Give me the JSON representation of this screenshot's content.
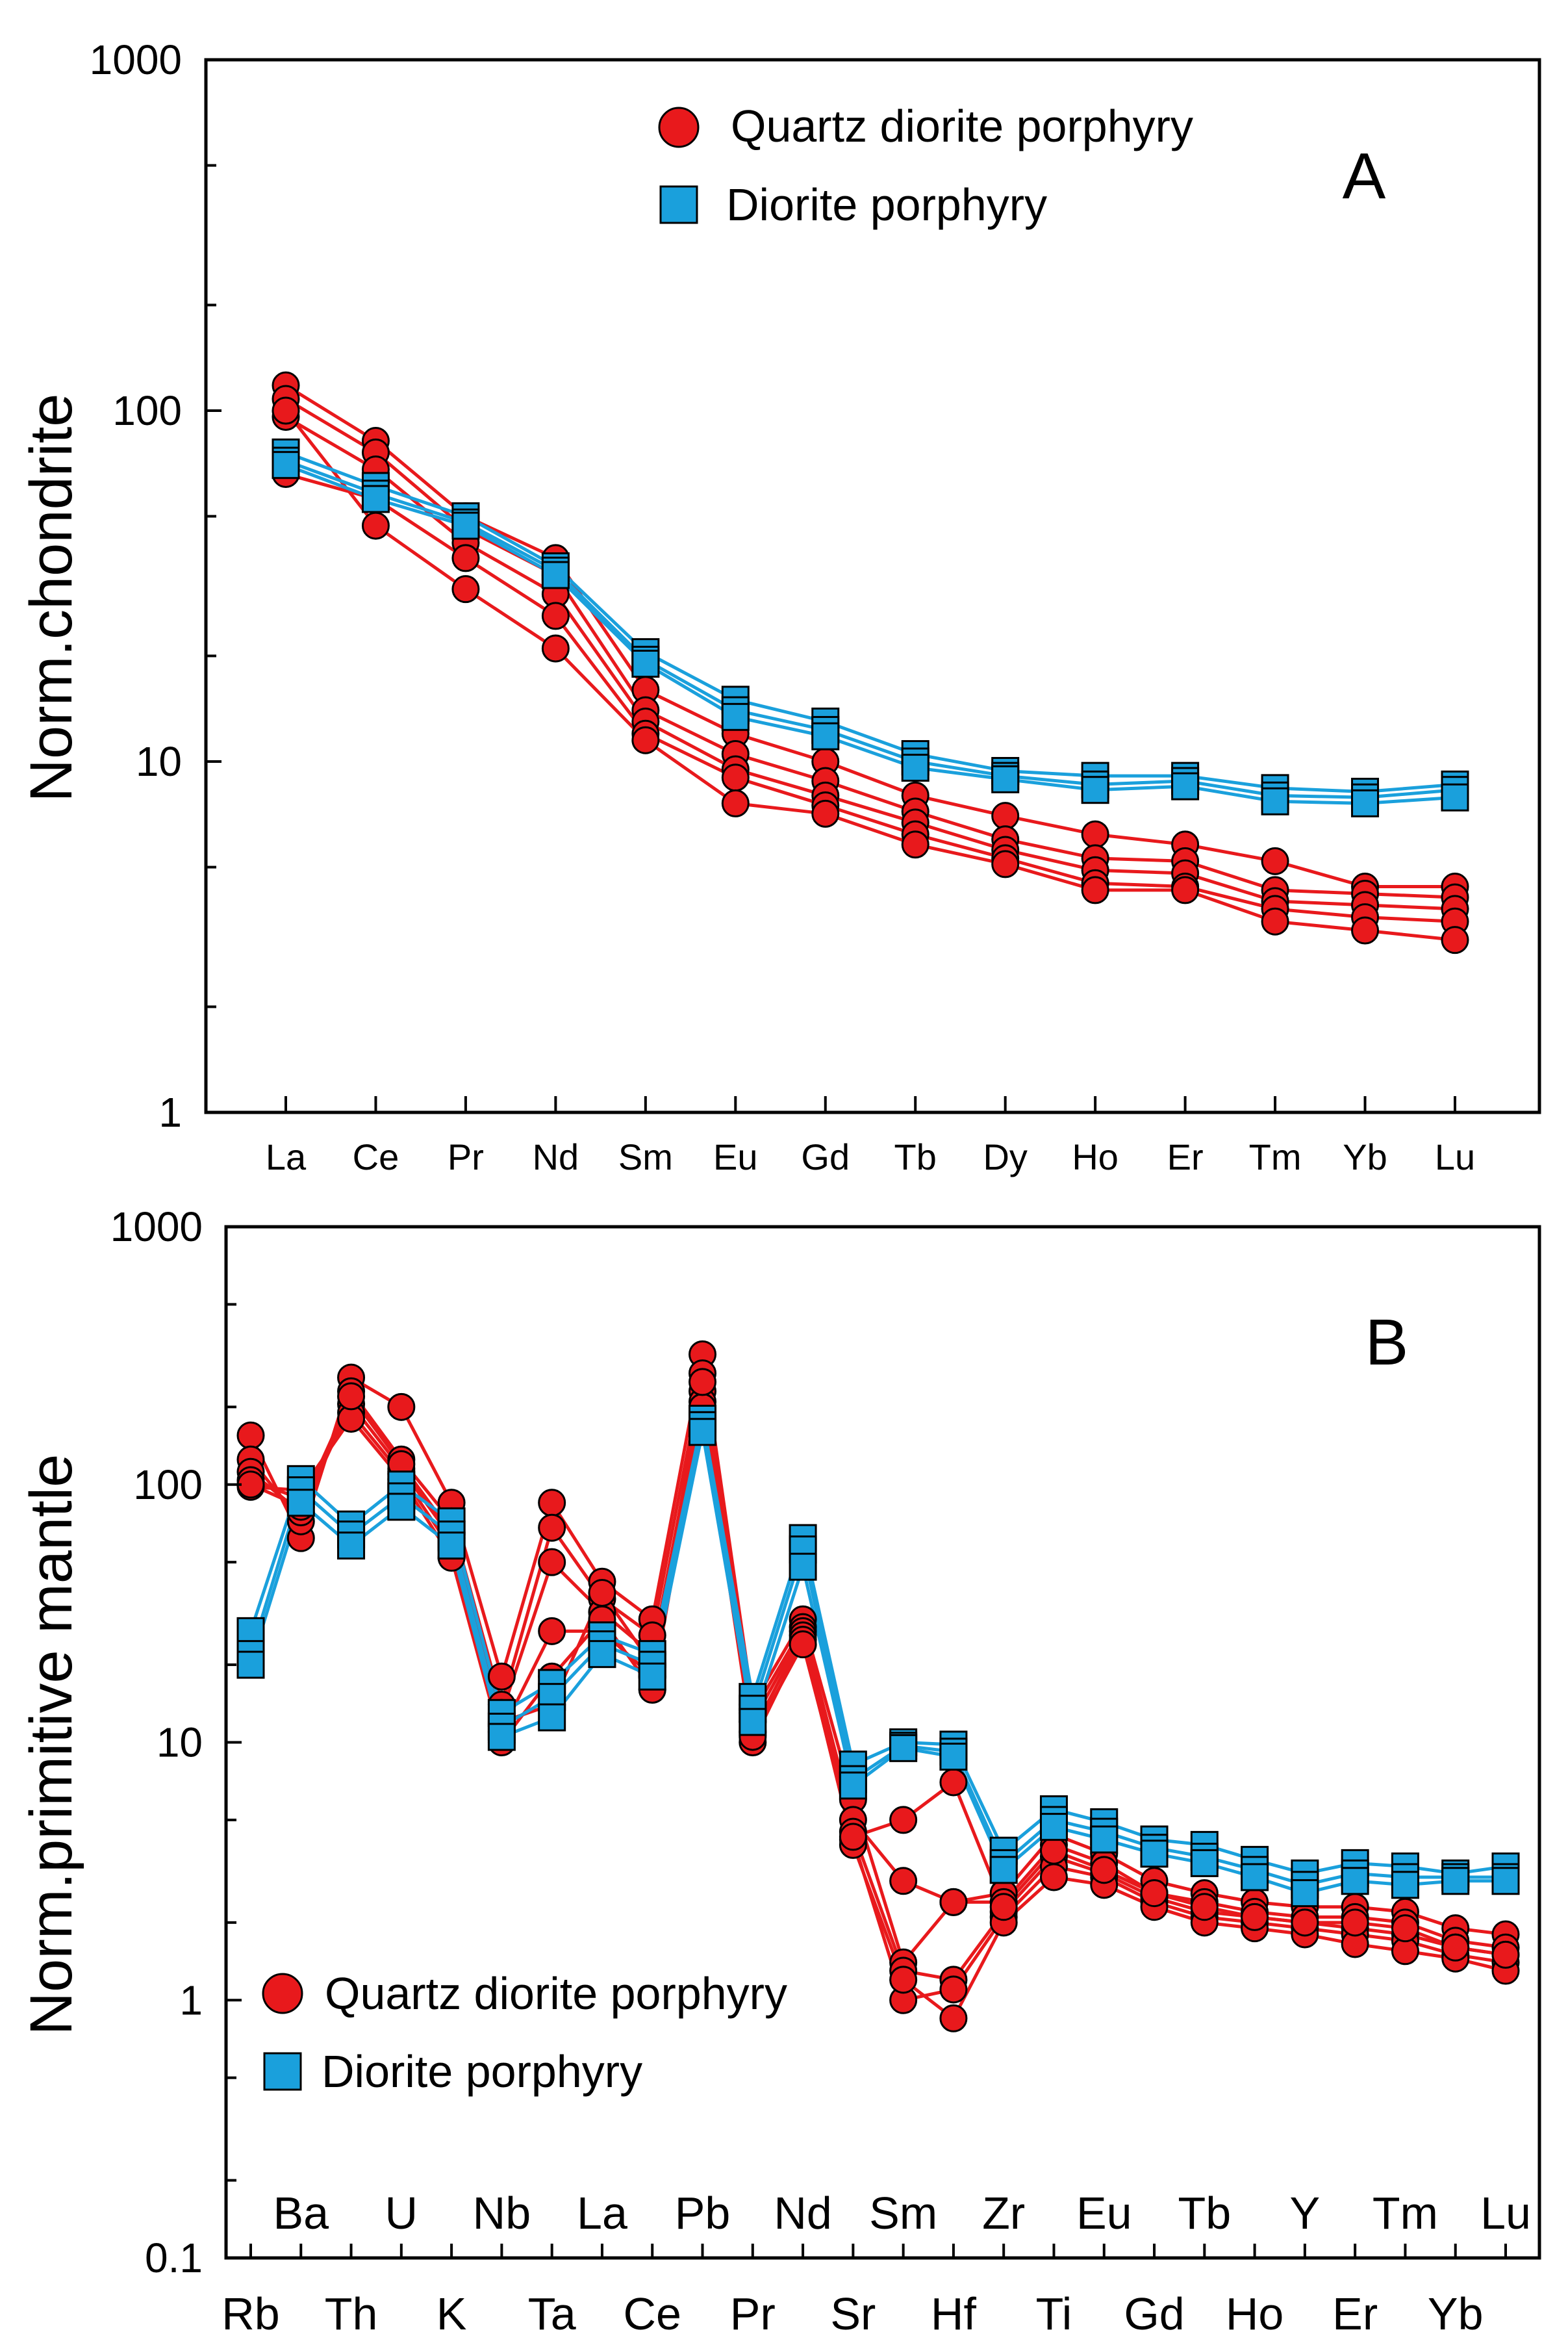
{
  "colors": {
    "quartz": "#e8191c",
    "diorite": "#1aa0dc",
    "frame": "#000000"
  },
  "chart_data": [
    {
      "panel": "A",
      "type": "line",
      "scale": "log",
      "ylabel": "Norm.chondrite",
      "ylim": [
        1,
        1000
      ],
      "yticks": [
        "1",
        "10",
        "100",
        "1000"
      ],
      "categories": [
        "La",
        "Ce",
        "Pr",
        "Nd",
        "Sm",
        "Eu",
        "Gd",
        "Tb",
        "Dy",
        "Ho",
        "Er",
        "Tm",
        "Yb",
        "Lu"
      ],
      "legend": [
        {
          "label": "Quartz diorite porphyry",
          "marker": "circle",
          "color": "#e8191c"
        },
        {
          "label": "Diorite porphyry",
          "marker": "square",
          "color": "#1aa0dc"
        }
      ],
      "series": [
        {
          "group": "Quartz diorite porphyry",
          "values": [
            118,
            82,
            50,
            38,
            16,
            12,
            10,
            8,
            7,
            6.2,
            5.8,
            5.2,
            4.4,
            4.4
          ]
        },
        {
          "group": "Quartz diorite porphyry",
          "values": [
            108,
            76,
            46,
            34,
            14,
            10.5,
            8.8,
            7.2,
            6,
            5.3,
            5.2,
            4.3,
            4.2,
            4.1
          ]
        },
        {
          "group": "Quartz diorite porphyry",
          "values": [
            96,
            68,
            42,
            30,
            13,
            9.5,
            8,
            6.7,
            5.6,
            4.9,
            4.8,
            4,
            3.9,
            3.8
          ]
        },
        {
          "group": "Quartz diorite porphyry",
          "values": [
            66,
            56,
            38,
            26,
            12,
            9,
            7.5,
            6.2,
            5.3,
            4.5,
            4.4,
            3.8,
            3.6,
            3.5
          ]
        },
        {
          "group": "Quartz diorite porphyry",
          "values": [
            100,
            47,
            31,
            21,
            11.5,
            7.6,
            7.1,
            5.8,
            5.1,
            4.3,
            4.3,
            3.5,
            3.3,
            3.1
          ]
        },
        {
          "group": "Diorite porphyry",
          "values": [
            76,
            61,
            50,
            36,
            20.5,
            15,
            13,
            10.5,
            9.4,
            9.1,
            9.1,
            8.4,
            8.2,
            8.6
          ]
        },
        {
          "group": "Diorite porphyry",
          "values": [
            72,
            58,
            48,
            35,
            19.5,
            14,
            12.3,
            10,
            9.1,
            8.6,
            8.8,
            8,
            7.9,
            8.3
          ]
        },
        {
          "group": "Diorite porphyry",
          "values": [
            70,
            56,
            47,
            34,
            19,
            13.4,
            11.8,
            9.6,
            8.9,
            8.3,
            8.5,
            7.7,
            7.6,
            7.9
          ]
        }
      ],
      "annotation": "A"
    },
    {
      "panel": "B",
      "type": "line",
      "scale": "log",
      "ylabel": "Norm.primitive mantle",
      "ylim": [
        0.1,
        1000
      ],
      "yticks": [
        "0.1",
        "1",
        "10",
        "100",
        "1000"
      ],
      "categories": [
        "Rb",
        "Ba",
        "Th",
        "U",
        "K",
        "Nb",
        "Ta",
        "La",
        "Ce",
        "Pb",
        "Pr",
        "Nd",
        "Sr",
        "Sm",
        "Hf",
        "Zr",
        "Ti",
        "Eu",
        "Gd",
        "Tb",
        "Ho",
        "Y",
        "Er",
        "Tm",
        "Yb",
        "Lu"
      ],
      "xlabels_upper": [
        "Ba",
        "U",
        "Nb",
        "La",
        "Pb",
        "Nd",
        "Sm",
        "Zr",
        "Eu",
        "Tb",
        "Y",
        "Tm",
        "Lu"
      ],
      "xlabels_lower": [
        "Rb",
        "Th",
        "K",
        "Ta",
        "Ce",
        "Pr",
        "Sr",
        "Hf",
        "Ti",
        "Gd",
        "Ho",
        "Er",
        "Yb"
      ],
      "legend": [
        {
          "label": "Quartz diorite porphyry",
          "marker": "circle",
          "color": "#e8191c"
        },
        {
          "label": "Diorite porphyry",
          "marker": "square",
          "color": "#1aa0dc"
        }
      ],
      "series": [
        {
          "group": "Quartz diorite porphyry",
          "values": [
            155,
            62,
            260,
            200,
            85,
            18,
            85,
            42,
            30,
            320,
            14,
            30,
            6,
            1.4,
            2.4,
            2.6,
            4.4,
            3.7,
            2.9,
            2.6,
            2.4,
            2.3,
            2.3,
            2.2,
            1.9,
            1.8
          ]
        },
        {
          "group": "Quartz diorite porphyry",
          "values": [
            125,
            72,
            230,
            125,
            72,
            14,
            68,
            36,
            26,
            270,
            13,
            28,
            5,
            2.9,
            2.4,
            2.4,
            4,
            3.4,
            2.6,
            2.4,
            2.2,
            2.1,
            2.1,
            2,
            1.7,
            1.6
          ]
        },
        {
          "group": "Quartz diorite porphyry",
          "values": [
            112,
            78,
            205,
            115,
            62,
            13,
            50,
            32,
            22,
            230,
            12,
            27,
            4.5,
            1.3,
            1.2,
            2.2,
            3.6,
            3.1,
            2.5,
            2.2,
            2.1,
            2,
            1.9,
            1.8,
            1.6,
            1.5
          ]
        },
        {
          "group": "Quartz diorite porphyry",
          "values": [
            104,
            88,
            190,
            110,
            56,
            11,
            27,
            27,
            18,
            210,
            11,
            26,
            4.2,
            1,
            1.1,
            2.1,
            3.3,
            3,
            2.4,
            2.1,
            2,
            1.9,
            1.8,
            1.7,
            1.5,
            1.4
          ]
        },
        {
          "group": "Quartz diorite porphyry",
          "values": [
            98,
            95,
            180,
            105,
            52,
            10,
            18,
            30,
            16,
            200,
            10,
            25,
            4,
            1.2,
            0.85,
            2,
            3,
            2.8,
            2.3,
            2,
            1.9,
            1.8,
            1.65,
            1.55,
            1.45,
            1.3
          ]
        },
        {
          "group": "Quartz diorite porphyry",
          "values": [
            100,
            82,
            220,
            120,
            65,
            12,
            14,
            38,
            20,
            250,
            10.5,
            24,
            4.3,
            5,
            7,
            2.3,
            3.8,
            3.2,
            2.6,
            2.3,
            2.1,
            2,
            2,
            1.9,
            1.6,
            1.5
          ]
        },
        {
          "group": "Diorite porphyry",
          "values": [
            27,
            105,
            70,
            100,
            72,
            13,
            17,
            26,
            22,
            180,
            15,
            62,
            8.2,
            10,
            9.8,
            3.8,
            5.5,
            4.9,
            4.2,
            4,
            3.5,
            3.1,
            3.4,
            3.3,
            3.1,
            3.3
          ]
        },
        {
          "group": "Diorite porphyry",
          "values": [
            22,
            95,
            64,
            90,
            64,
            11.5,
            15,
            24,
            20,
            170,
            13.5,
            56,
            7.2,
            9.7,
            9.2,
            3.4,
            5,
            4.5,
            3.9,
            3.6,
            3.2,
            2.8,
            3.1,
            3,
            3,
            3
          ]
        },
        {
          "group": "Diorite porphyry",
          "values": [
            20,
            85,
            58,
            82,
            58,
            10.5,
            12.5,
            22,
            18,
            160,
            12,
            48,
            6.8,
            9.5,
            8.8,
            3.2,
            4.7,
            4.2,
            3.7,
            3.4,
            3,
            2.6,
            2.9,
            2.8,
            2.9,
            2.9
          ]
        }
      ],
      "annotation": "B"
    }
  ]
}
